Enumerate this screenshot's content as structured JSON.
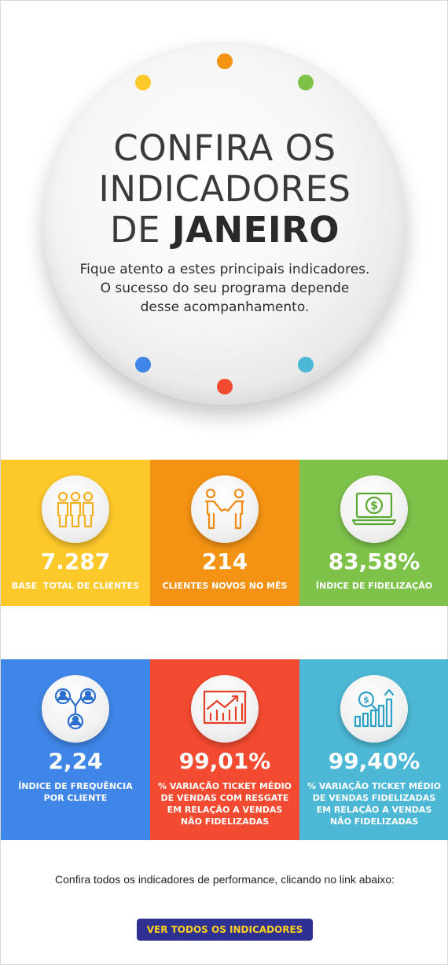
{
  "hero": {
    "title_line1": "CONFIRA OS",
    "title_line2": "INDICADORES",
    "title_line3_prefix": "DE ",
    "title_line3_bold": "JANEIRO",
    "subtitle_line1": "Fique atento a estes principais indicadores.",
    "subtitle_line2": "O sucesso do seu programa depende",
    "subtitle_line3": "desse acompanhamento."
  },
  "indicators": [
    {
      "value": "7.287",
      "label": "BASE  TOTAL DE CLIENTES",
      "color": "#fdc82a",
      "icon": "people-icon"
    },
    {
      "value": "214",
      "label": "CLIENTES NOVOS NO MÊS",
      "color": "#f39213",
      "icon": "handshake-icon"
    },
    {
      "value": "83,58%",
      "label": "ÍNDICE DE FIDELIZAÇÃO",
      "color": "#7ec24a",
      "icon": "laptop-dollar-icon"
    },
    {
      "value": "2,24",
      "label": "ÍNDICE DE FREQUÊNCIA POR CLIENTE",
      "color": "#3f86e8",
      "icon": "network-users-icon"
    },
    {
      "value": "99,01%",
      "label": "% VARIAÇÃO TICKET MÉDIO DE VENDAS COM RESGATE EM RELAÇÃO A VENDAS NÃO FIDELIZADAS",
      "color": "#f34b31",
      "icon": "trend-chart-icon"
    },
    {
      "value": "99,40%",
      "label": "% VARIAÇÃO TICKET MÉDIO DE VENDAS FIDELIZADAS EM RELAÇÃO A VENDAS NÃO FIDELIZADAS",
      "color": "#4db8d6",
      "icon": "search-bar-chart-icon"
    }
  ],
  "footer": {
    "text": "Confira todos os indicadores de performance, clicando no link abaixo:",
    "button_label": "VER TODOS OS INDICADORES"
  },
  "colors": {
    "yellow": "#fdc82a",
    "orange": "#f39213",
    "green": "#7ec24a",
    "blue": "#3f86e8",
    "red": "#f34b31",
    "cyan": "#4db8d6",
    "cta_bg": "#2f3192",
    "cta_text": "#ffd21f"
  }
}
